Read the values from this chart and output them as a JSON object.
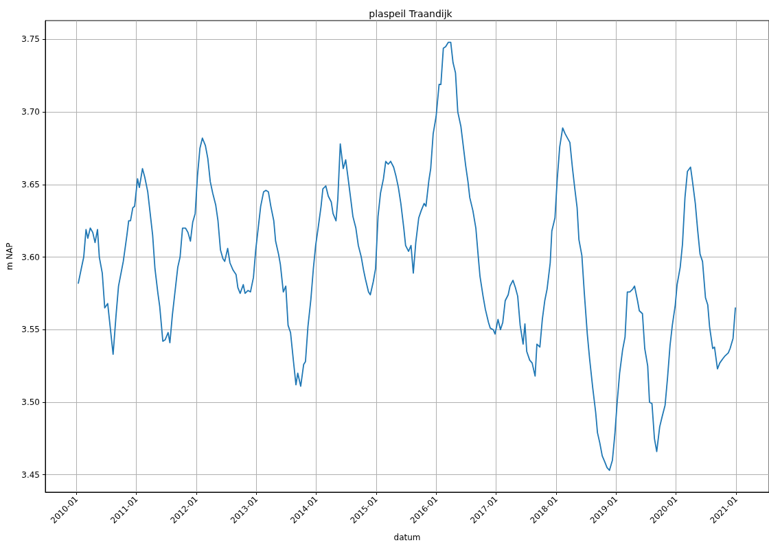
{
  "chart_data": {
    "type": "line",
    "title": "plaspeil Traandijk",
    "xlabel": "datum",
    "ylabel": "m NAP",
    "xlim": [
      "2009-06-25",
      "2021-07-21"
    ],
    "ylim": [
      3.438,
      3.763
    ],
    "xticks": [
      "2010-01",
      "2011-01",
      "2012-01",
      "2013-01",
      "2014-01",
      "2015-01",
      "2016-01",
      "2017-01",
      "2018-01",
      "2019-01",
      "2020-01",
      "2021-01"
    ],
    "yticks": [
      {
        "value": 3.45,
        "label": "3.45"
      },
      {
        "value": 3.5,
        "label": "3.50"
      },
      {
        "value": 3.55,
        "label": "3.55"
      },
      {
        "value": 3.6,
        "label": "3.60"
      },
      {
        "value": 3.65,
        "label": "3.65"
      },
      {
        "value": 3.7,
        "label": "3.70"
      },
      {
        "value": 3.75,
        "label": "3.75"
      }
    ],
    "grid": true,
    "marker": "none",
    "line_style": "solid",
    "series": [
      {
        "color": "#1f77b4",
        "x": [
          "2010-01-12",
          "2010-01-30",
          "2010-02-14",
          "2010-02-28",
          "2010-03-11",
          "2010-03-26",
          "2010-04-10",
          "2010-04-24",
          "2010-05-09",
          "2010-05-20",
          "2010-06-07",
          "2010-06-22",
          "2010-07-10",
          "2010-08-12",
          "2010-08-30",
          "2010-09-14",
          "2010-10-13",
          "2010-11-04",
          "2010-11-15",
          "2010-11-26",
          "2010-12-10",
          "2010-12-21",
          "2011-01-08",
          "2011-01-19",
          "2011-02-07",
          "2011-02-21",
          "2011-03-11",
          "2011-04-10",
          "2011-04-24",
          "2011-05-12",
          "2011-05-23",
          "2011-06-11",
          "2011-06-25",
          "2011-07-13",
          "2011-07-24",
          "2011-08-08",
          "2011-09-10",
          "2011-09-24",
          "2011-10-09",
          "2011-10-27",
          "2011-11-11",
          "2011-11-26",
          "2011-12-10",
          "2011-12-25",
          "2012-01-08",
          "2012-01-23",
          "2012-02-07",
          "2012-02-25",
          "2012-03-11",
          "2012-03-26",
          "2012-04-10",
          "2012-04-28",
          "2012-05-12",
          "2012-05-27",
          "2012-06-11",
          "2012-06-22",
          "2012-07-10",
          "2012-07-24",
          "2012-08-12",
          "2012-08-30",
          "2012-09-10",
          "2012-09-24",
          "2012-10-13",
          "2012-10-24",
          "2012-11-11",
          "2012-11-26",
          "2012-12-14",
          "2012-12-28",
          "2013-01-12",
          "2013-01-27",
          "2013-02-14",
          "2013-02-28",
          "2013-03-15",
          "2013-03-30",
          "2013-04-17",
          "2013-04-28",
          "2013-05-16",
          "2013-05-27",
          "2013-06-14",
          "2013-06-29",
          "2013-07-13",
          "2013-07-28",
          "2013-08-15",
          "2013-08-30",
          "2013-09-10",
          "2013-09-28",
          "2013-10-16",
          "2013-10-27",
          "2013-11-11",
          "2013-11-29",
          "2013-12-14",
          "2013-12-28",
          "2014-01-12",
          "2014-01-30",
          "2014-02-10",
          "2014-02-28",
          "2014-03-15",
          "2014-04-02",
          "2014-04-13",
          "2014-05-01",
          "2014-05-12",
          "2014-05-27",
          "2014-06-14",
          "2014-06-29",
          "2014-07-13",
          "2014-08-01",
          "2014-08-12",
          "2014-08-30",
          "2014-09-14",
          "2014-10-02",
          "2014-10-16",
          "2014-10-27",
          "2014-11-15",
          "2014-11-26",
          "2014-12-14",
          "2014-12-28",
          "2015-01-12",
          "2015-01-27",
          "2015-02-14",
          "2015-02-28",
          "2015-03-15",
          "2015-03-30",
          "2015-04-17",
          "2015-05-01",
          "2015-05-16",
          "2015-05-31",
          "2015-06-18",
          "2015-06-29",
          "2015-07-17",
          "2015-08-01",
          "2015-08-15",
          "2015-08-30",
          "2015-09-17",
          "2015-10-02",
          "2015-10-20",
          "2015-10-31",
          "2015-11-18",
          "2015-11-29",
          "2015-12-14",
          "2016-01-01",
          "2016-01-19",
          "2016-01-30",
          "2016-02-14",
          "2016-02-28",
          "2016-03-15",
          "2016-03-30",
          "2016-04-13",
          "2016-04-28",
          "2016-05-12",
          "2016-05-31",
          "2016-06-14",
          "2016-06-29",
          "2016-07-13",
          "2016-07-24",
          "2016-08-12",
          "2016-08-30",
          "2016-09-14",
          "2016-09-24",
          "2016-10-13",
          "2016-10-27",
          "2016-11-15",
          "2016-11-26",
          "2016-12-14",
          "2016-12-25",
          "2017-01-12",
          "2017-01-27",
          "2017-02-10",
          "2017-02-25",
          "2017-03-15",
          "2017-03-26",
          "2017-04-13",
          "2017-04-28",
          "2017-05-12",
          "2017-05-27",
          "2017-06-14",
          "2017-06-25",
          "2017-07-06",
          "2017-07-24",
          "2017-08-08",
          "2017-08-26",
          "2017-09-06",
          "2017-09-24",
          "2017-10-09",
          "2017-10-24",
          "2017-11-07",
          "2017-11-26",
          "2017-12-06",
          "2017-12-25",
          "2018-01-08",
          "2018-01-23",
          "2018-02-10",
          "2018-02-25",
          "2018-03-26",
          "2018-04-10",
          "2018-04-24",
          "2018-05-09",
          "2018-05-20",
          "2018-06-07",
          "2018-06-22",
          "2018-07-10",
          "2018-07-24",
          "2018-08-12",
          "2018-08-30",
          "2018-09-10",
          "2018-09-24",
          "2018-10-09",
          "2018-10-24",
          "2018-11-07",
          "2018-11-22",
          "2018-12-10",
          "2018-12-25",
          "2019-01-08",
          "2019-01-23",
          "2019-02-10",
          "2019-02-25",
          "2019-03-11",
          "2019-03-26",
          "2019-04-13",
          "2019-04-24",
          "2019-05-12",
          "2019-05-23",
          "2019-06-11",
          "2019-06-25",
          "2019-07-13",
          "2019-07-24",
          "2019-08-08",
          "2019-08-23",
          "2019-09-06",
          "2019-09-24",
          "2019-10-09",
          "2019-10-27",
          "2019-11-11",
          "2019-11-26",
          "2019-12-10",
          "2019-12-28",
          "2020-01-08",
          "2020-01-27",
          "2020-02-10",
          "2020-02-25",
          "2020-03-11",
          "2020-03-30",
          "2020-04-10",
          "2020-04-28",
          "2020-05-12",
          "2020-05-27",
          "2020-06-11",
          "2020-06-29",
          "2020-07-13",
          "2020-07-24",
          "2020-08-12",
          "2020-08-23",
          "2020-09-10",
          "2020-09-24",
          "2020-10-13",
          "2020-10-27",
          "2020-11-15",
          "2020-11-26",
          "2020-12-14",
          "2020-12-28"
        ],
        "values": [
          3.582,
          3.592,
          3.6,
          3.619,
          3.613,
          3.62,
          3.617,
          3.61,
          3.619,
          3.6,
          3.589,
          3.565,
          3.568,
          3.533,
          3.56,
          3.58,
          3.597,
          3.615,
          3.625,
          3.625,
          3.634,
          3.635,
          3.654,
          3.648,
          3.661,
          3.655,
          3.645,
          3.615,
          3.592,
          3.575,
          3.566,
          3.542,
          3.543,
          3.548,
          3.541,
          3.56,
          3.593,
          3.6,
          3.62,
          3.62,
          3.617,
          3.611,
          3.624,
          3.63,
          3.656,
          3.675,
          3.682,
          3.677,
          3.668,
          3.652,
          3.644,
          3.636,
          3.625,
          3.605,
          3.599,
          3.597,
          3.606,
          3.596,
          3.591,
          3.588,
          3.579,
          3.575,
          3.581,
          3.575,
          3.577,
          3.576,
          3.586,
          3.605,
          3.62,
          3.635,
          3.645,
          3.646,
          3.645,
          3.635,
          3.625,
          3.611,
          3.602,
          3.595,
          3.576,
          3.58,
          3.553,
          3.548,
          3.528,
          3.512,
          3.52,
          3.511,
          3.526,
          3.528,
          3.552,
          3.571,
          3.592,
          3.608,
          3.62,
          3.635,
          3.647,
          3.649,
          3.642,
          3.638,
          3.63,
          3.625,
          3.64,
          3.678,
          3.661,
          3.667,
          3.655,
          3.638,
          3.628,
          3.62,
          3.608,
          3.6,
          3.591,
          3.585,
          3.576,
          3.574,
          3.583,
          3.592,
          3.628,
          3.644,
          3.654,
          3.666,
          3.664,
          3.666,
          3.662,
          3.656,
          3.648,
          3.637,
          3.62,
          3.608,
          3.604,
          3.608,
          3.589,
          3.61,
          3.627,
          3.632,
          3.637,
          3.635,
          3.653,
          3.661,
          3.685,
          3.697,
          3.719,
          3.719,
          3.744,
          3.745,
          3.748,
          3.748,
          3.734,
          3.727,
          3.7,
          3.69,
          3.677,
          3.663,
          3.652,
          3.641,
          3.632,
          3.62,
          3.6,
          3.587,
          3.573,
          3.564,
          3.555,
          3.551,
          3.55,
          3.547,
          3.557,
          3.55,
          3.555,
          3.57,
          3.574,
          3.58,
          3.584,
          3.579,
          3.573,
          3.553,
          3.54,
          3.554,
          3.535,
          3.529,
          3.527,
          3.518,
          3.54,
          3.538,
          3.557,
          3.57,
          3.578,
          3.596,
          3.618,
          3.627,
          3.654,
          3.676,
          3.689,
          3.685,
          3.679,
          3.662,
          3.648,
          3.634,
          3.612,
          3.601,
          3.575,
          3.547,
          3.53,
          3.51,
          3.493,
          3.479,
          3.472,
          3.463,
          3.459,
          3.455,
          3.453,
          3.46,
          3.478,
          3.5,
          3.52,
          3.536,
          3.545,
          3.576,
          3.576,
          3.578,
          3.58,
          3.57,
          3.563,
          3.561,
          3.537,
          3.525,
          3.5,
          3.499,
          3.475,
          3.466,
          3.483,
          3.49,
          3.498,
          3.517,
          3.539,
          3.553,
          3.567,
          3.581,
          3.593,
          3.609,
          3.641,
          3.659,
          3.662,
          3.653,
          3.637,
          3.619,
          3.602,
          3.597,
          3.572,
          3.567,
          3.552,
          3.537,
          3.538,
          3.523,
          3.527,
          3.53,
          3.532,
          3.534,
          3.537,
          3.544,
          3.565
        ]
      }
    ]
  }
}
